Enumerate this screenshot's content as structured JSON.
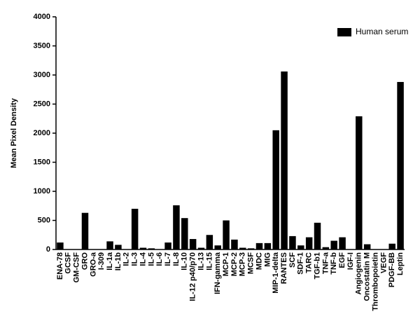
{
  "chart_data": {
    "type": "bar",
    "y_label": "Mean Pixel Density",
    "categories": [
      "ENA-78",
      "GCSF",
      "GM-CSF",
      "GRO",
      "GRO-a",
      "I-309",
      "IL-1a",
      "IL-1b",
      "IL-2",
      "IL-3",
      "IL-4",
      "IL-5",
      "IL-6",
      "IL-7",
      "IL-8",
      "IL-10",
      "IL-12 p40/p70",
      "IL-13",
      "IL-15",
      "IFN-gamma",
      "MCP-1",
      "MCP-2",
      "MCP-3",
      "MCSF",
      "MDC",
      "MIG",
      "MIP-1-delta",
      "RANTES",
      "SCF",
      "SDF-1",
      "TARC",
      "TGF-b1",
      "TNF-a",
      "TNF-b",
      "EGF",
      "IGF-I",
      "Angiogenin",
      "Oncostatin M",
      "Thrombopoietin",
      "VEGF",
      "PDGF-BB",
      "Leptin"
    ],
    "series": [
      {
        "name": "Human serum",
        "color": "#000000",
        "values": [
          120,
          0,
          0,
          630,
          0,
          0,
          140,
          80,
          0,
          700,
          30,
          20,
          0,
          120,
          760,
          540,
          180,
          30,
          250,
          70,
          500,
          170,
          30,
          20,
          110,
          110,
          2050,
          3060,
          230,
          70,
          210,
          460,
          40,
          150,
          210,
          0,
          2290,
          90,
          0,
          0,
          100,
          2880
        ]
      }
    ],
    "ylim": [
      0,
      4000
    ],
    "yticks": [
      0,
      500,
      1000,
      1500,
      2000,
      2500,
      3000,
      3500,
      4000
    ],
    "grid": false,
    "legend": "top-right"
  }
}
